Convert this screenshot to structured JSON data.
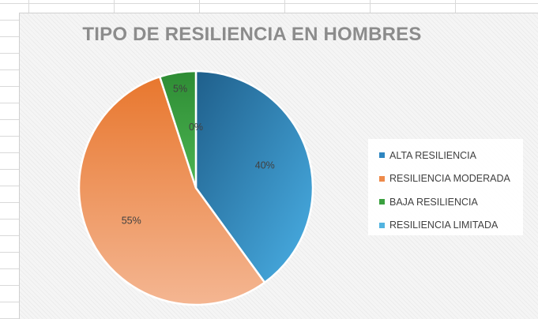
{
  "chart_data": {
    "type": "pie",
    "title": "TIPO DE RESILIENCIA EN HOMBRES",
    "categories": [
      "ALTA RESILIENCIA",
      "RESILIENCIA MODERADA",
      "BAJA RESILIENCIA",
      "RESILIENCIA LIMITADA"
    ],
    "values": [
      40,
      55,
      5,
      0
    ],
    "data_labels": [
      "40%",
      "55%",
      "5%",
      "0%"
    ],
    "colors": [
      "#2e86c1",
      "#ee8a4a",
      "#3aa03f",
      "#52b4e0"
    ],
    "legend_position": "right"
  }
}
